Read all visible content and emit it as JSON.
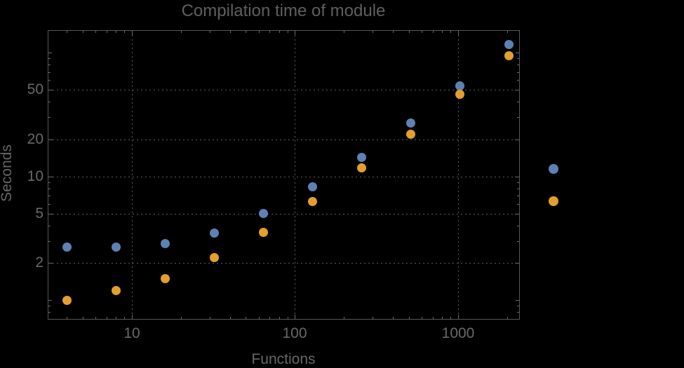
{
  "chart_data": {
    "type": "scatter",
    "title": "Compilation time of module",
    "xlabel": "Functions",
    "ylabel": "Seconds",
    "x_scale": "log",
    "y_scale": "log",
    "xlim": [
      3.05,
      2372
    ],
    "ylim": [
      0.705,
      152.2
    ],
    "grid": "dotted gridlines at labeled ticks only",
    "legend_position": "outside-right, markers only (labels not visible)",
    "x_tick_values": [
      10,
      100,
      1000
    ],
    "x_tick_labels": [
      "10",
      "100",
      "1000"
    ],
    "y_tick_values": [
      2,
      5,
      10,
      20,
      50
    ],
    "y_tick_labels": [
      "2",
      "5",
      "10",
      "20",
      "50"
    ],
    "x": [
      4,
      8,
      16,
      32,
      64,
      128,
      256,
      512,
      1024,
      2048
    ],
    "series": [
      {
        "name": "series-1",
        "color": "#5e81b5",
        "label": "",
        "values": [
          2.7,
          2.7,
          2.85,
          3.5,
          5.0,
          8.2,
          14.3,
          27,
          54,
          117
        ]
      },
      {
        "name": "series-2",
        "color": "#e49f2c",
        "label": "",
        "values": [
          1.0,
          1.2,
          1.5,
          2.2,
          3.55,
          6.3,
          11.8,
          22,
          46,
          94
        ]
      }
    ]
  },
  "colors": {
    "background": "#000000",
    "frame": "#585858",
    "grid": "#5c5c5c",
    "tick": "#6a6a6a",
    "tick_label": "#696969",
    "axis_label": "#676767",
    "title": "#5f5f5f"
  }
}
